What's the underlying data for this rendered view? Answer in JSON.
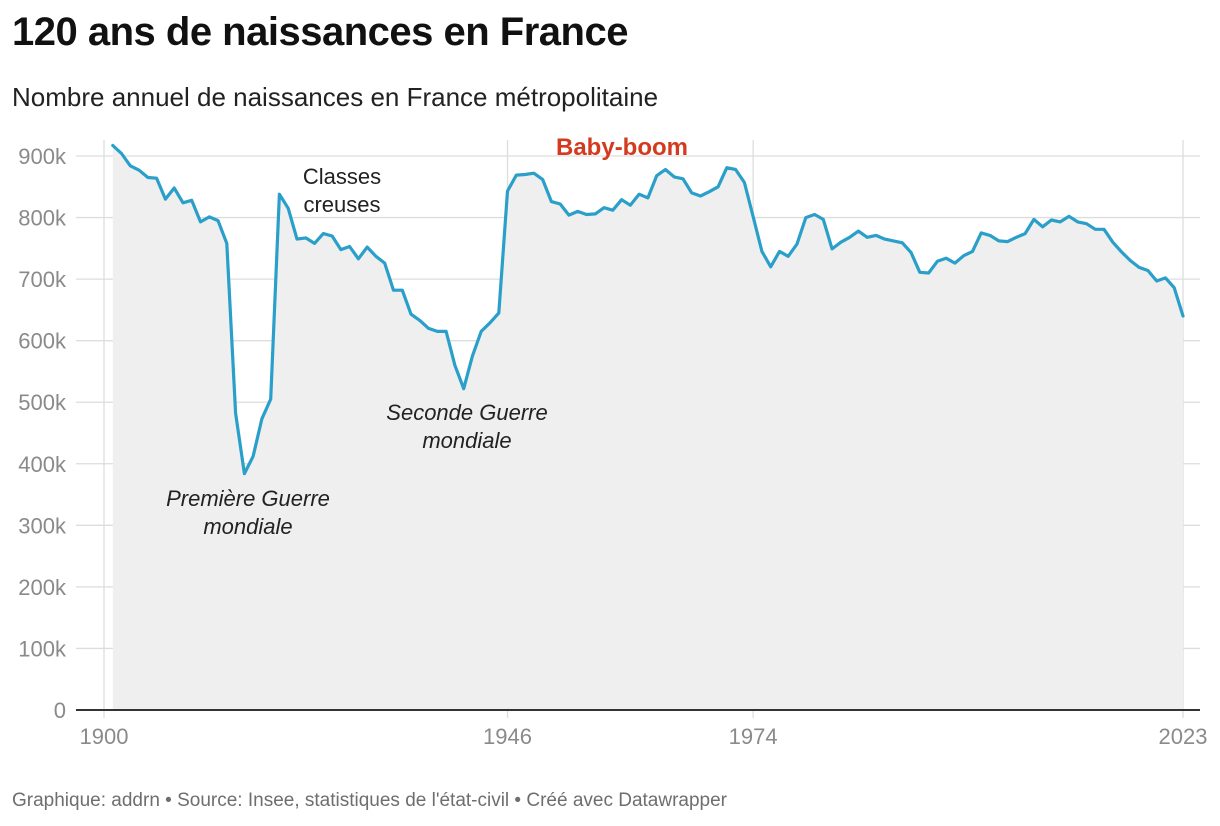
{
  "title": "120 ans de naissances en France",
  "subtitle": "Nombre annuel de naissances en France métropolitaine",
  "footer": "Graphique: addrn • Source: Insee, statistiques de l'état-civil • Créé avec Datawrapper",
  "colors": {
    "line": "#2a9fc9",
    "area": "#efefef",
    "grid": "#dddddd",
    "highlight": "#d43a1e"
  },
  "chart_data": {
    "type": "area",
    "title": "120 ans de naissances en France",
    "subtitle": "Nombre annuel de naissances en France métropolitaine",
    "xlabel": "",
    "ylabel": "",
    "ylim": [
      0,
      900000
    ],
    "y_ticks": [
      0,
      100000,
      200000,
      300000,
      400000,
      500000,
      600000,
      700000,
      800000,
      900000
    ],
    "y_tick_labels": [
      "0",
      "100k",
      "200k",
      "300k",
      "400k",
      "500k",
      "600k",
      "700k",
      "800k",
      "900k"
    ],
    "x_ticks": [
      1900,
      1946,
      1974,
      2023
    ],
    "x_tick_labels": [
      "1900",
      "1946",
      "1974",
      "2023"
    ],
    "grid": true,
    "series": [
      {
        "x": [
          1901,
          1902,
          1903,
          1904,
          1905,
          1906,
          1907,
          1908,
          1909,
          1910,
          1911,
          1912,
          1913,
          1914,
          1915,
          1916,
          1917,
          1918,
          1919,
          1920,
          1921,
          1922,
          1923,
          1924,
          1925,
          1926,
          1927,
          1928,
          1929,
          1930,
          1931,
          1932,
          1933,
          1934,
          1935,
          1936,
          1937,
          1938,
          1939,
          1940,
          1941,
          1942,
          1943,
          1944,
          1945,
          1946,
          1947,
          1948,
          1949,
          1950,
          1951,
          1952,
          1953,
          1954,
          1955,
          1956,
          1957,
          1958,
          1959,
          1960,
          1961,
          1962,
          1963,
          1964,
          1965,
          1966,
          1967,
          1968,
          1969,
          1970,
          1971,
          1972,
          1973,
          1974,
          1975,
          1976,
          1977,
          1978,
          1979,
          1980,
          1981,
          1982,
          1983,
          1984,
          1985,
          1986,
          1987,
          1988,
          1989,
          1990,
          1991,
          1992,
          1993,
          1994,
          1995,
          1996,
          1997,
          1998,
          1999,
          2000,
          2001,
          2002,
          2003,
          2004,
          2005,
          2006,
          2007,
          2008,
          2009,
          2010,
          2011,
          2012,
          2013,
          2014,
          2015,
          2016,
          2017,
          2018,
          2019,
          2020,
          2021,
          2022,
          2023
        ],
        "values": [
          917000,
          904000,
          884000,
          877000,
          865000,
          864000,
          830000,
          848000,
          824000,
          828000,
          793000,
          801000,
          795000,
          758000,
          482000,
          384000,
          412000,
          473000,
          505000,
          838000,
          815000,
          765000,
          767000,
          758000,
          774000,
          770000,
          748000,
          753000,
          733000,
          752000,
          737000,
          726000,
          682000,
          682000,
          643000,
          633000,
          620000,
          615000,
          615000,
          560000,
          522000,
          575000,
          615000,
          629000,
          645000,
          843000,
          869000,
          870000,
          872000,
          862000,
          826000,
          822000,
          804000,
          810000,
          805000,
          806000,
          816000,
          812000,
          829000,
          820000,
          838000,
          832000,
          868000,
          878000,
          866000,
          863000,
          840000,
          835000,
          842000,
          850000,
          881000,
          878000,
          857000,
          801000,
          745000,
          720000,
          745000,
          737000,
          757000,
          800000,
          805000,
          797000,
          749000,
          760000,
          768000,
          778000,
          768000,
          771000,
          765000,
          762000,
          759000,
          743000,
          711000,
          710000,
          729000,
          734000,
          726000,
          738000,
          745000,
          775000,
          771000,
          762000,
          761000,
          768000,
          774000,
          797000,
          785000,
          796000,
          793000,
          802000,
          793000,
          790000,
          781000,
          781000,
          760000,
          744000,
          730000,
          719000,
          714000,
          697000,
          702000,
          686000,
          640000
        ]
      }
    ],
    "annotations": [
      {
        "text": "Baby-boom",
        "style": "bold-red"
      },
      {
        "text": "Classes creuses",
        "style": "normal"
      },
      {
        "text": "Première Guerre mondiale",
        "style": "italic"
      },
      {
        "text": "Seconde Guerre mondiale",
        "style": "italic"
      }
    ]
  },
  "annotations": {
    "baby_boom": "Baby-boom",
    "classes_1": "Classes",
    "classes_2": "creuses",
    "ww1_1": "Première Guerre",
    "ww1_2": "mondiale",
    "ww2_1": "Seconde Guerre",
    "ww2_2": "mondiale"
  }
}
